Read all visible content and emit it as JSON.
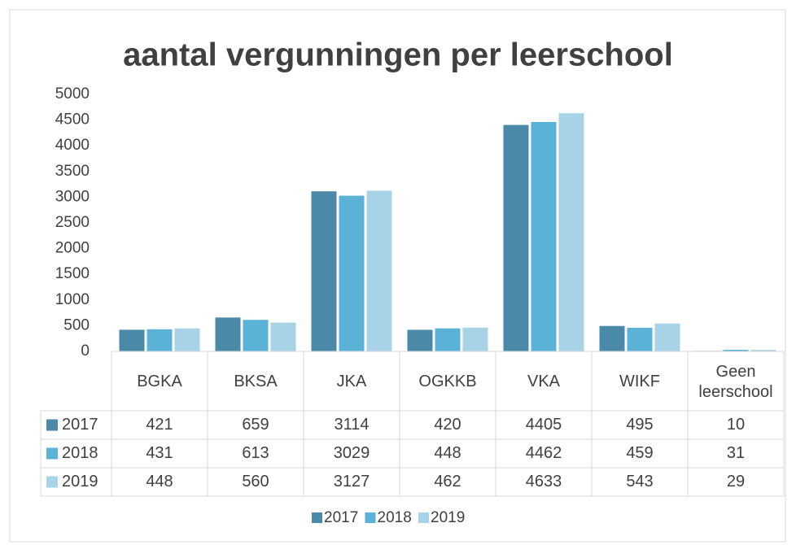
{
  "chart_data": {
    "type": "bar",
    "title": "aantal vergunningen per leerschool",
    "categories": [
      "BGKA",
      "BKSA",
      "JKA",
      "OGKKB",
      "VKA",
      "WIKF",
      "Geen leerschool"
    ],
    "series": [
      {
        "name": "2017",
        "color": "#4a8aa8",
        "values": [
          421,
          659,
          3114,
          420,
          4405,
          495,
          10
        ]
      },
      {
        "name": "2018",
        "color": "#5ab3d6",
        "values": [
          431,
          613,
          3029,
          448,
          4462,
          459,
          31
        ]
      },
      {
        "name": "2019",
        "color": "#a8d3e6",
        "values": [
          448,
          560,
          3127,
          462,
          4633,
          543,
          29
        ]
      }
    ],
    "ylim": [
      0,
      5000
    ],
    "yticks": [
      0,
      500,
      1000,
      1500,
      2000,
      2500,
      3000,
      3500,
      4000,
      4500,
      5000
    ],
    "legend": "bottom"
  }
}
